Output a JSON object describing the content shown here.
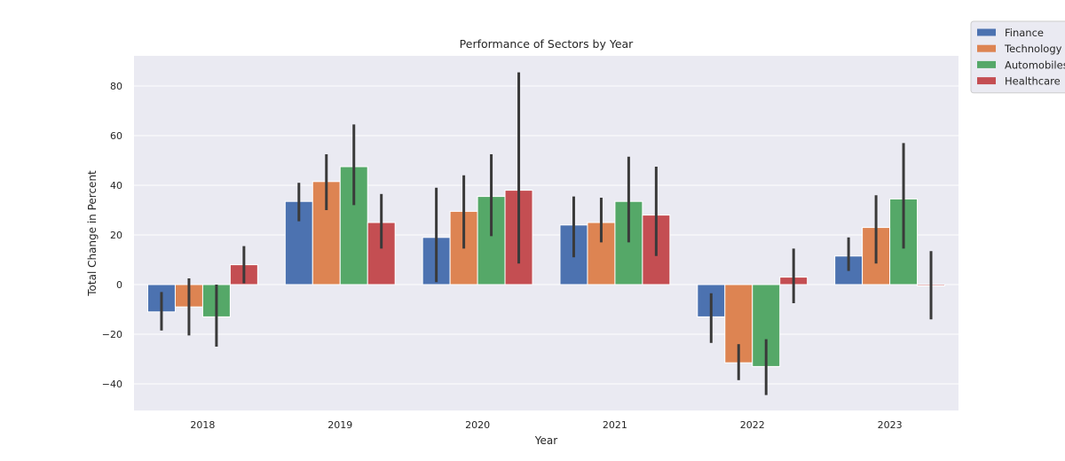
{
  "chart_data": {
    "type": "bar",
    "title": "Performance of Sectors by Year",
    "xlabel": "Year",
    "ylabel": "Total Change in Percent",
    "categories": [
      "2018",
      "2019",
      "2020",
      "2021",
      "2022",
      "2023"
    ],
    "ylim": [
      -52,
      92
    ],
    "yticks": [
      -40,
      -20,
      0,
      20,
      40,
      60,
      80
    ],
    "grid": true,
    "legend_position": "outside-top-right",
    "error_bars": true,
    "series": [
      {
        "name": "Finance",
        "color": "#4c72b0",
        "values": [
          -11,
          33.5,
          19,
          24,
          -13,
          11.5
        ],
        "errors": [
          [
            -18.5,
            -3
          ],
          [
            25.5,
            41
          ],
          [
            1,
            39
          ],
          [
            11,
            35.5
          ],
          [
            -23.5,
            -3.5
          ],
          [
            5.5,
            19
          ]
        ]
      },
      {
        "name": "Technology",
        "color": "#dd8452",
        "values": [
          -9,
          41.5,
          29.5,
          25,
          -31.5,
          23
        ],
        "errors": [
          [
            -20.5,
            2.5
          ],
          [
            30,
            52.5
          ],
          [
            14.5,
            44
          ],
          [
            17,
            35
          ],
          [
            -38.5,
            -24
          ],
          [
            8.5,
            36
          ]
        ]
      },
      {
        "name": "Automobiles",
        "color": "#55a868",
        "values": [
          -13,
          47.5,
          35.5,
          33.5,
          -33,
          34.5
        ],
        "errors": [
          [
            -25,
            0
          ],
          [
            32,
            64.5
          ],
          [
            19.5,
            52.5
          ],
          [
            17,
            51.5
          ],
          [
            -44.5,
            -22
          ],
          [
            14.5,
            57
          ]
        ]
      },
      {
        "name": "Healthcare",
        "color": "#c44e52",
        "values": [
          8,
          25,
          38,
          28,
          3,
          -0.5
        ],
        "errors": [
          [
            0.5,
            15.5
          ],
          [
            14.5,
            36.5
          ],
          [
            8.5,
            85.5
          ],
          [
            11.5,
            47.5
          ],
          [
            -7.5,
            14.5
          ],
          [
            -14,
            13.5
          ]
        ]
      }
    ]
  }
}
